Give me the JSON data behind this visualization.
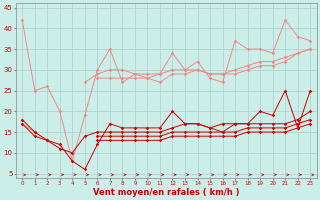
{
  "xlabel": "Vent moyen/en rafales ( km/h )",
  "bg_color": "#cceee8",
  "grid_color": "#aacccc",
  "x_values": [
    0,
    1,
    2,
    3,
    4,
    5,
    6,
    7,
    8,
    9,
    10,
    11,
    12,
    13,
    14,
    15,
    16,
    17,
    18,
    19,
    20,
    21,
    22,
    23
  ],
  "ylim": [
    4,
    46
  ],
  "xlim": [
    -0.5,
    23.5
  ],
  "yticks": [
    5,
    10,
    15,
    20,
    25,
    30,
    35,
    40,
    45
  ],
  "series_light": [
    [
      42,
      25,
      26,
      20,
      8,
      19,
      30,
      35,
      27,
      29,
      28,
      29,
      34,
      30,
      32,
      28,
      27,
      37,
      35,
      35,
      34,
      42,
      38,
      37
    ],
    [
      null,
      null,
      null,
      null,
      null,
      27,
      29,
      30,
      30,
      29,
      29,
      29,
      30,
      30,
      30,
      29,
      29,
      30,
      31,
      32,
      32,
      33,
      34,
      35
    ],
    [
      null,
      null,
      null,
      null,
      null,
      null,
      28,
      28,
      28,
      28,
      28,
      27,
      29,
      29,
      30,
      29,
      29,
      29,
      30,
      31,
      31,
      32,
      34,
      35
    ],
    [
      17,
      15,
      null,
      null,
      null,
      null,
      null,
      null,
      null,
      null,
      null,
      null,
      null,
      null,
      null,
      null,
      null,
      null,
      null,
      null,
      null,
      null,
      null,
      null
    ]
  ],
  "series_dark": [
    [
      18,
      15,
      13,
      12,
      8,
      6,
      12,
      17,
      16,
      16,
      16,
      16,
      20,
      17,
      17,
      16,
      15,
      17,
      17,
      20,
      19,
      25,
      16,
      25
    ],
    [
      17,
      14,
      13,
      11,
      10,
      14,
      15,
      15,
      15,
      15,
      15,
      15,
      16,
      17,
      17,
      16,
      17,
      17,
      17,
      17,
      17,
      17,
      18,
      20
    ],
    [
      null,
      null,
      null,
      null,
      null,
      null,
      14,
      14,
      14,
      14,
      14,
      14,
      15,
      15,
      15,
      15,
      15,
      15,
      16,
      16,
      16,
      16,
      17,
      18
    ],
    [
      null,
      null,
      null,
      null,
      null,
      null,
      13,
      13,
      13,
      13,
      13,
      13,
      14,
      14,
      14,
      14,
      14,
      14,
      15,
      15,
      15,
      15,
      16,
      17
    ]
  ],
  "light_color": "#f08888",
  "dark_color": "#cc0000",
  "arrow_color": "#cc0000",
  "ytick_fontsize": 5,
  "xtick_fontsize": 4,
  "xlabel_fontsize": 6
}
